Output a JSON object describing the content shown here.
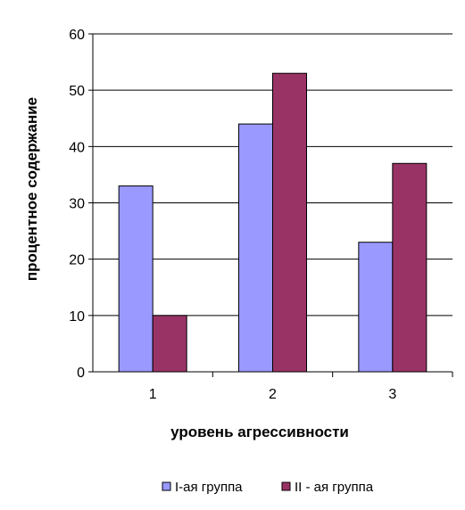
{
  "chart_data": {
    "type": "bar",
    "categories": [
      "1",
      "2",
      "3"
    ],
    "series": [
      {
        "name": "I-ая группа",
        "values": [
          33,
          44,
          23
        ],
        "color": "#9999ff"
      },
      {
        "name": "II - ая группа",
        "values": [
          10,
          53,
          37
        ],
        "color": "#993366"
      }
    ],
    "xlabel": "уровень агрессивности",
    "ylabel": "процентное содержание",
    "ylim": [
      0,
      60
    ],
    "yticks": [
      0,
      10,
      20,
      30,
      40,
      50,
      60
    ],
    "grid": true,
    "legend_position": "bottom"
  }
}
